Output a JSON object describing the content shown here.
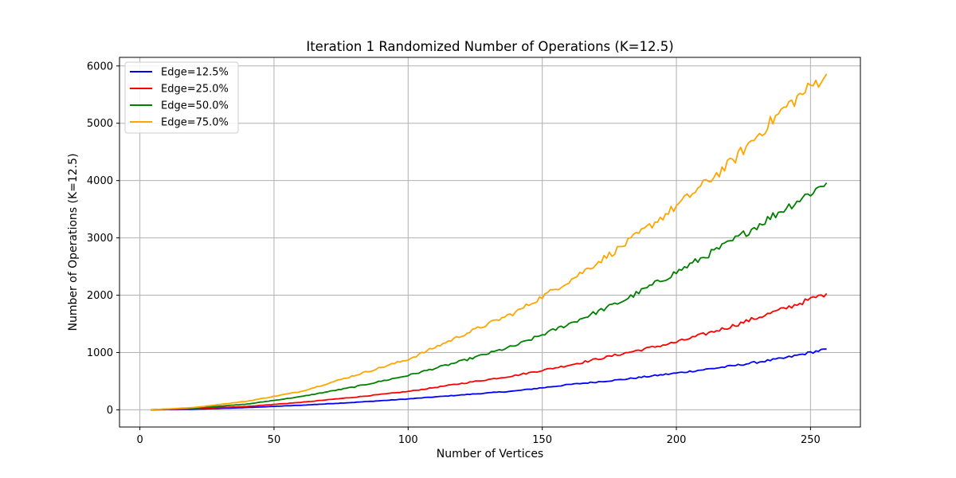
{
  "chart_data": {
    "type": "line",
    "title": "Iteration 1 Randomized Number of Operations (K=12.5)",
    "xlabel": "Number of Vertices",
    "ylabel": "Number of Operations (K=12.5)",
    "xlim": [
      -7.6,
      268.6
    ],
    "ylim": [
      -300,
      6150
    ],
    "xticks": [
      0,
      50,
      100,
      150,
      200,
      250
    ],
    "yticks": [
      0,
      1000,
      2000,
      3000,
      4000,
      5000,
      6000
    ],
    "grid": true,
    "legend_position": "top-left",
    "x_range": [
      4,
      256
    ],
    "series": [
      {
        "name": "Edge=12.5%",
        "color": "#0000ff",
        "x": [
          4,
          20,
          40,
          60,
          80,
          100,
          120,
          140,
          160,
          180,
          200,
          220,
          240,
          256
        ],
        "y": [
          0,
          10,
          40,
          80,
          130,
          190,
          260,
          330,
          440,
          530,
          640,
          760,
          900,
          1060
        ]
      },
      {
        "name": "Edge=25.0%",
        "color": "#ff0000",
        "x": [
          4,
          20,
          40,
          60,
          80,
          100,
          120,
          140,
          160,
          180,
          200,
          220,
          240,
          256
        ],
        "y": [
          0,
          20,
          60,
          130,
          220,
          320,
          460,
          600,
          780,
          980,
          1180,
          1450,
          1760,
          2030
        ]
      },
      {
        "name": "Edge=50.0%",
        "color": "#008000",
        "x": [
          4,
          20,
          40,
          60,
          80,
          100,
          120,
          140,
          160,
          180,
          200,
          220,
          240,
          256
        ],
        "y": [
          0,
          30,
          100,
          230,
          400,
          600,
          850,
          1120,
          1500,
          1900,
          2400,
          2920,
          3500,
          3960
        ]
      },
      {
        "name": "Edge=75.0%",
        "color": "#ffa500",
        "x": [
          4,
          20,
          40,
          60,
          80,
          100,
          120,
          140,
          160,
          180,
          200,
          220,
          240,
          256
        ],
        "y": [
          0,
          40,
          150,
          320,
          600,
          880,
          1300,
          1700,
          2250,
          2860,
          3550,
          4300,
          5250,
          5860
        ]
      }
    ]
  }
}
